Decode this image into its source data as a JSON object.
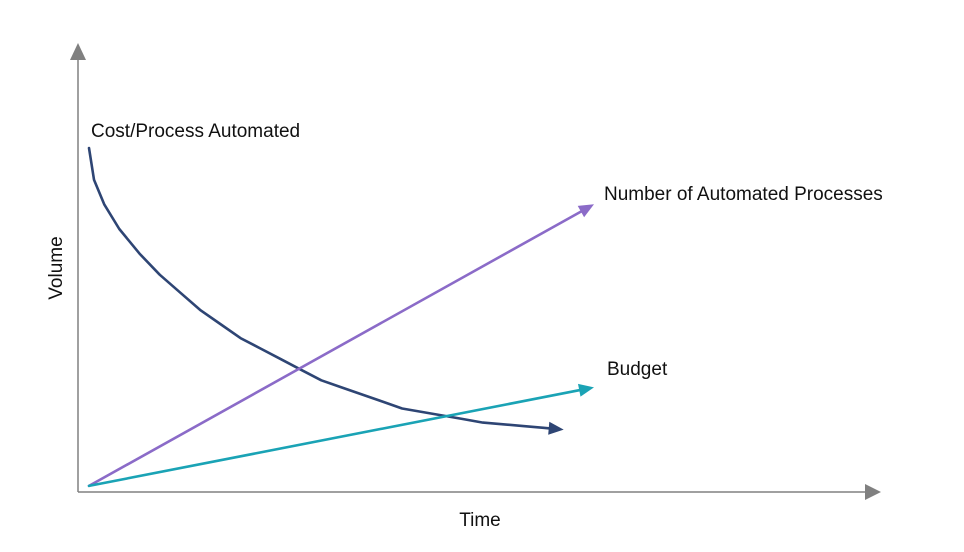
{
  "chart_data": {
    "type": "line",
    "title": "",
    "xlabel": "Time",
    "ylabel": "Volume",
    "grid": false,
    "legend": "none",
    "series": [
      {
        "name": "Cost/Process Automated",
        "color": "#2e4574",
        "x": [
          0,
          1,
          3,
          6,
          10,
          14,
          18,
          22,
          26,
          30,
          34,
          38,
          42,
          46,
          50,
          54,
          58,
          62,
          66,
          70,
          74,
          78,
          82,
          86,
          90,
          94
        ],
        "y": [
          100,
          91,
          84,
          77,
          70,
          64,
          59,
          54,
          50,
          46,
          43,
          40,
          37,
          34,
          32,
          30,
          28,
          26,
          25,
          24,
          23,
          22,
          21.5,
          21,
          20.5,
          20
        ]
      },
      {
        "name": "Number of Automated Processes",
        "color": "#8b6bc8",
        "x": [
          0,
          100
        ],
        "y": [
          4,
          84
        ]
      },
      {
        "name": "Budget",
        "color": "#1aa3b5",
        "x": [
          0,
          100
        ],
        "y": [
          4,
          32
        ]
      }
    ]
  }
}
